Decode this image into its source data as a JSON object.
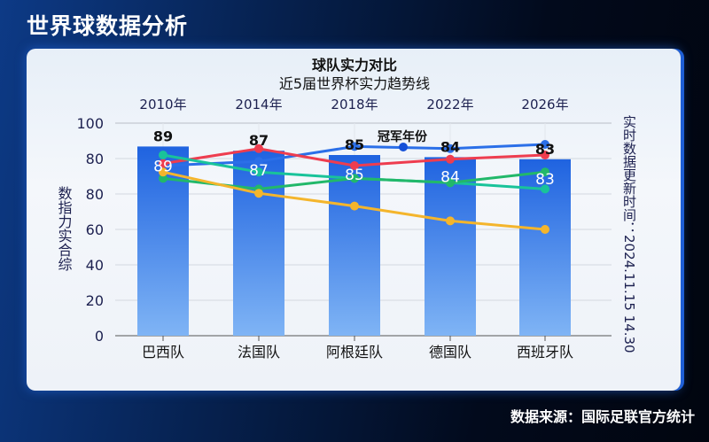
{
  "header": {
    "title": "世界球数据分析"
  },
  "footer": {
    "source": "数据来源：国际足联官方统计"
  },
  "chart_data": {
    "type": "bar+line",
    "title": "球队实力对比",
    "subtitle": "近5届世界杯实力趋势线",
    "ylabel": "数指力实合综",
    "side_note": "实时数据更新时间：2024.11.15 14.30",
    "legend": [
      "冠军年份"
    ],
    "legend_placement": "top-center",
    "grid": true,
    "ylim": [
      0,
      100
    ],
    "y_tick_labels": [
      "100",
      "80",
      "80",
      "60",
      "40",
      "20",
      "0"
    ],
    "categories": [
      "巴西队",
      "法国队",
      "阿根廷队",
      "德国队",
      "西班牙队"
    ],
    "top_categories": [
      "2010年",
      "2014年",
      "2018年",
      "2022年",
      "2026年"
    ],
    "bars": {
      "values": [
        89,
        87,
        85,
        84,
        83
      ],
      "color": "#2a72e6"
    },
    "lines": [
      {
        "color": "#2b6fe8",
        "values": [
          80,
          82,
          89,
          88,
          90
        ]
      },
      {
        "color": "#ee3d4f",
        "values": [
          81,
          88,
          80,
          83,
          85
        ]
      },
      {
        "color": "#19c39a",
        "values": [
          85,
          77,
          74,
          72,
          69
        ]
      },
      {
        "color": "#22b86a",
        "values": [
          74,
          69,
          74,
          72,
          77
        ]
      },
      {
        "color": "#f4b52c",
        "values": [
          77,
          67,
          61,
          54,
          50
        ]
      }
    ]
  }
}
